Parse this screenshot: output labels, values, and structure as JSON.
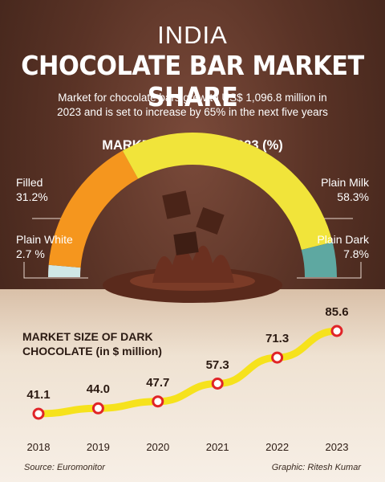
{
  "header": {
    "title_top": "INDIA",
    "title_main": "CHOCOLATE BAR MARKET SHARE",
    "subtitle_line1": "Market for chocolate bars grew to US$ 1,096.8 million in",
    "subtitle_line2": "2023 and is set to increase by 65% in the next five years"
  },
  "colors": {
    "filled": "#f5961e",
    "plain_white": "#cfe7e6",
    "plain_milk": "#f1e43a",
    "plain_dark": "#5ea8a1",
    "line": "#f6e21c",
    "point": "#e02428"
  },
  "chart_data": [
    {
      "type": "pie",
      "title": "MARKET SHARE IN 2023 (%)",
      "slices": [
        {
          "name": "Plain White",
          "value": 2.7,
          "label": "2.7 %"
        },
        {
          "name": "Filled",
          "value": 31.2,
          "label": "31.2%"
        },
        {
          "name": "Plain Milk",
          "value": 58.3,
          "label": "58.3%"
        },
        {
          "name": "Plain Dark",
          "value": 7.8,
          "label": "7.8%"
        }
      ]
    },
    {
      "type": "line",
      "title_line1": "MARKET SIZE OF DARK",
      "title_line2": "CHOCOLATE (in $ million)",
      "x": [
        "2018",
        "2019",
        "2020",
        "2021",
        "2022",
        "2023"
      ],
      "values": [
        41.1,
        44.0,
        47.7,
        57.3,
        71.3,
        85.6
      ],
      "value_labels": [
        "41.1",
        "44.0",
        "47.7",
        "57.3",
        "71.3",
        "85.6"
      ]
    }
  ],
  "footer": {
    "source": "Source: Euromonitor",
    "credit": "Graphic: Ritesh Kumar"
  }
}
